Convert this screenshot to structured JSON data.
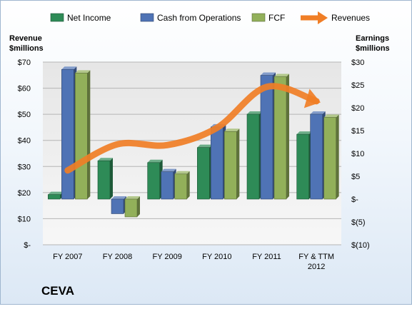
{
  "chart_data": {
    "type": "bar",
    "title": "CEVA",
    "categories": [
      "FY 2007",
      "FY 2008",
      "FY 2009",
      "FY 2010",
      "FY 2011",
      "FY & TTM 2012"
    ],
    "category_lines": [
      [
        "FY 2007"
      ],
      [
        "FY 2008"
      ],
      [
        "FY 2009"
      ],
      [
        "FY 2010"
      ],
      [
        "FY 2011"
      ],
      [
        "FY & TTM",
        "2012"
      ]
    ],
    "left_axis": {
      "label_lines": [
        "Revenue",
        "$millions"
      ],
      "ticks": [
        "$-",
        "$10",
        "$20",
        "$30",
        "$40",
        "$50",
        "$60",
        "$70"
      ],
      "ylim": [
        0,
        70
      ]
    },
    "right_axis": {
      "label_lines": [
        "Earnings",
        "$millions"
      ],
      "ticks": [
        "$(10)",
        "$(5)",
        "$-",
        "$5",
        "$10",
        "$15",
        "$20",
        "$25",
        "$30"
      ],
      "ylim": [
        -10,
        30
      ]
    },
    "series": [
      {
        "name": "Net Income",
        "type": "bar",
        "axis": "right",
        "color": "#2e8b57",
        "values": [
          1.0,
          8.4,
          8.0,
          11.3,
          18.6,
          14.2
        ]
      },
      {
        "name": "Cash from Operations",
        "type": "bar",
        "axis": "right",
        "color": "#4f73b5",
        "values": [
          28.4,
          -3.2,
          6.0,
          15.8,
          27.1,
          18.6
        ]
      },
      {
        "name": "FCF",
        "type": "bar",
        "axis": "right",
        "color": "#92b05a",
        "values": [
          27.6,
          -3.9,
          5.5,
          14.8,
          26.8,
          17.9
        ]
      },
      {
        "name": "Revenues",
        "type": "line",
        "axis": "left",
        "color": "#f07e26",
        "values": [
          28.5,
          38.5,
          38.2,
          44.8,
          60.5,
          55.0
        ]
      }
    ],
    "legend": {
      "position": "top"
    },
    "grid": true
  }
}
